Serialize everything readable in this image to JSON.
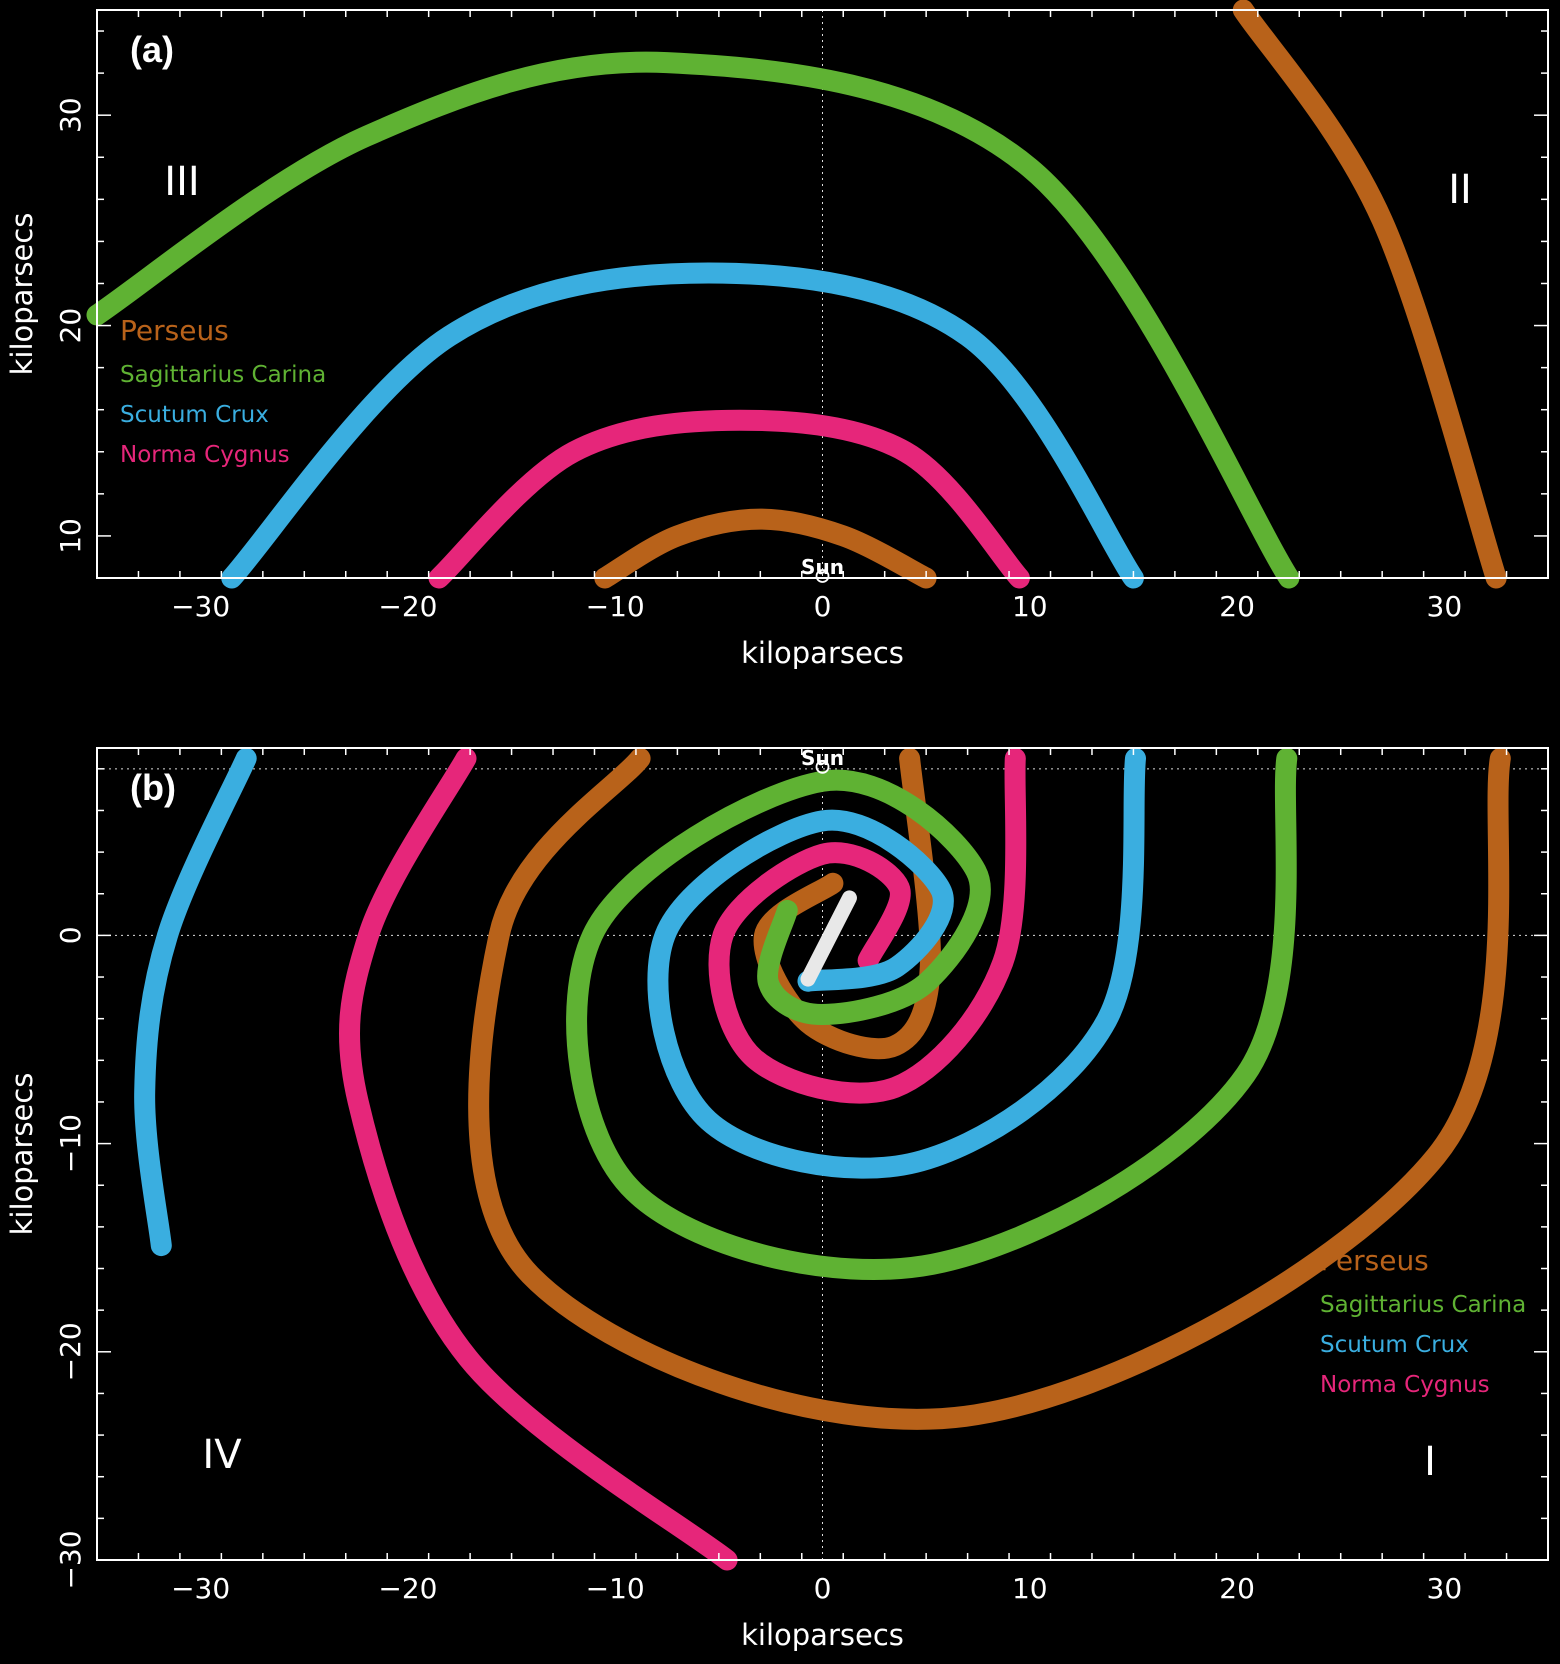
{
  "chart_data": [
    {
      "type": "line",
      "panel_label": "(a)",
      "xlabel": "kiloparsecs",
      "ylabel": "kiloparsecs",
      "xlim": [
        -35,
        35
      ],
      "ylim": [
        8,
        35
      ],
      "xticks": [
        -30,
        -20,
        -10,
        0,
        10,
        20,
        30
      ],
      "yticks": [
        10,
        20,
        30
      ],
      "quadrant_labels": {
        "left": "III",
        "right": "II"
      },
      "sun_label": "Sun",
      "sun_position": [
        0,
        8
      ],
      "legend": {
        "placement": "left",
        "entries": [
          {
            "label": "Perseus",
            "color": "#b8621a"
          },
          {
            "label": "Sagittarius Carina",
            "color": "#5fb233"
          },
          {
            "label": "Scutum Crux",
            "color": "#3aaee0"
          },
          {
            "label": "Norma Cygnus",
            "color": "#e6267a"
          }
        ]
      },
      "series": [
        {
          "name": "Perseus",
          "color": "#b8621a",
          "x": [
            -10.5,
            -7,
            -3,
            1,
            5
          ],
          "y": [
            8,
            10,
            10.8,
            10,
            8
          ]
        },
        {
          "name": "Norma Cygnus",
          "color": "#e6267a",
          "x": [
            -18.5,
            -12,
            -4,
            4,
            9.5
          ],
          "y": [
            8,
            14,
            15.5,
            14,
            8
          ]
        },
        {
          "name": "Scutum Crux",
          "color": "#3aaee0",
          "x": [
            -28.5,
            -18,
            -5.5,
            7,
            15
          ],
          "y": [
            8,
            19.5,
            22.5,
            19.5,
            8
          ]
        },
        {
          "name": "Sagittarius Carina",
          "color": "#5fb233",
          "x": [
            -35,
            -22,
            -7.5,
            10,
            22.5
          ],
          "y": [
            20.5,
            29,
            32.5,
            27.5,
            8
          ]
        },
        {
          "name": "Perseus",
          "color": "#b8621a",
          "x": [
            20.3,
            27,
            32.5
          ],
          "y": [
            35,
            25,
            8
          ]
        }
      ]
    },
    {
      "type": "line",
      "panel_label": "(b)",
      "xlabel": "kiloparsecs",
      "ylabel": "kiloparsecs",
      "xlim": [
        -35,
        35
      ],
      "ylim": [
        -30,
        9
      ],
      "xticks": [
        -30,
        -20,
        -10,
        0,
        10,
        20,
        30
      ],
      "yticks": [
        -30,
        -20,
        -10,
        0
      ],
      "quadrant_labels": {
        "lower_left": "IV",
        "lower_right": "I"
      },
      "sun_label": "Sun",
      "sun_position": [
        0,
        8
      ],
      "bar": {
        "x": [
          -0.7,
          1.3
        ],
        "y": [
          -2.1,
          1.8
        ]
      },
      "legend": {
        "placement": "bottom-right",
        "entries": [
          {
            "label": "Perseus",
            "color": "#b8621a"
          },
          {
            "label": "Sagittarius Carina",
            "color": "#5fb233"
          },
          {
            "label": "Scutum Crux",
            "color": "#3aaee0"
          },
          {
            "label": "Norma Cygnus",
            "color": "#e6267a"
          }
        ]
      },
      "series": [
        {
          "name": "Perseus",
          "color": "#b8621a",
          "x": [
            0.5,
            -2.8,
            -0.7,
            3.5,
            5.2,
            4.2
          ],
          "y": [
            2.5,
            0,
            -4.2,
            -5.3,
            -1.5,
            8.5
          ]
        },
        {
          "name": "Norma Cygnus",
          "color": "#e6267a",
          "x": [
            2.2,
            3.7,
            0,
            -4.8,
            -3.3,
            3.5,
            8.7,
            9.3
          ],
          "y": [
            -1.2,
            2.3,
            3.9,
            0,
            -5.9,
            -7.3,
            -1.3,
            8.5
          ]
        },
        {
          "name": "Scutum Crux",
          "color": "#3aaee0",
          "x": [
            -0.7,
            3.6,
            5.7,
            0,
            -7.6,
            -5.5,
            4.5,
            13.7,
            15.1
          ],
          "y": [
            -2.2,
            -1.5,
            2.2,
            5.5,
            0,
            -8.9,
            -10.9,
            -4.1,
            8.5
          ]
        },
        {
          "name": "Sagittarius Carina",
          "color": "#5fb233",
          "x": [
            -1.7,
            -2.6,
            0,
            5.1,
            7.4,
            0,
            -11.1,
            -9.1,
            5.3,
            20.4,
            22.4
          ],
          "y": [
            1.2,
            -2.3,
            -3.8,
            -2.2,
            3.1,
            7.4,
            0,
            -12.3,
            -15.8,
            -6.7,
            8.5
          ]
        },
        {
          "name": "Perseus",
          "color": "#b8621a",
          "x": [
            -8.8,
            -15.6,
            -14.1,
            6.9,
            29.6,
            32.7
          ],
          "y": [
            8.5,
            0,
            -16.3,
            -23.1,
            -10.6,
            8.5
          ]
        },
        {
          "name": "Norma Cygnus",
          "color": "#e6267a",
          "x": [
            -17.2,
            -21.9,
            -22.4,
            -17.1,
            -4.6
          ],
          "y": [
            8.5,
            0,
            -8,
            -20.3,
            -30
          ]
        },
        {
          "name": "Scutum Crux",
          "color": "#3aaee0",
          "x": [
            -27.8,
            -31.6,
            -32.7,
            -31.9
          ],
          "y": [
            8.5,
            0,
            -7.5,
            -14.9
          ]
        }
      ]
    }
  ]
}
